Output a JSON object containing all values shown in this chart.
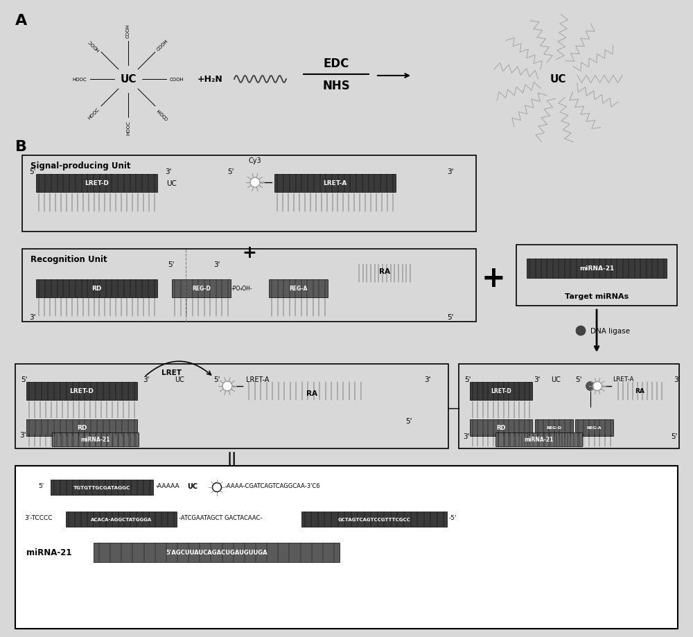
{
  "bg": "#d8d8d8",
  "white": "#ffffff",
  "dark_bar": "#3a3a3a",
  "medium_bar": "#5a5a5a",
  "mirna_bar": "#686868",
  "black": "#000000",
  "gray_line": "#888888",
  "zigzag_color": "#aaaaaa",
  "cy3_color": "#bbbbbb",
  "label_A": "A",
  "label_B": "B",
  "uc_label": "UC",
  "edc_label": "EDC",
  "nhs_label": "NHS",
  "h2n_label": "+H₂N",
  "spu_label": "Signal-producing Unit",
  "ru_label": "Recognition Unit",
  "target_label": "Target miRNAs",
  "mirna21": "miRNA-21",
  "lret_d": "LRET-D",
  "lret_a": "LRET-A",
  "rd": "RD",
  "ra": "RA",
  "reg_d": "REG-D",
  "reg_a": "REG-A",
  "cy3": "Cy3",
  "lret": "LRET",
  "dna_ligase": "DNA ligase",
  "po4oh": "-PO₄OH-",
  "seq_top1_dark": "TGTGTTGCGATAGGC",
  "seq_top1_plain": "-AAAAA",
  "seq_top1_uc": "UC",
  "seq_top1_right": "-AAAA-CGATCAGTCAGGCAA-3'C6",
  "seq_bot1": "3'-TCCCC",
  "seq_bot2_dark": "ACACA-AGGCTATGGGA",
  "seq_bot3": "-ATCGAATAGCT GACTACAAC-",
  "seq_bot4_dark": "GCTAGTCAGTCCGTTTCGCC",
  "seq_bot5": "-5'",
  "mirna_seq": "5'AGCUUAUCAGACUGAUGUUGA"
}
